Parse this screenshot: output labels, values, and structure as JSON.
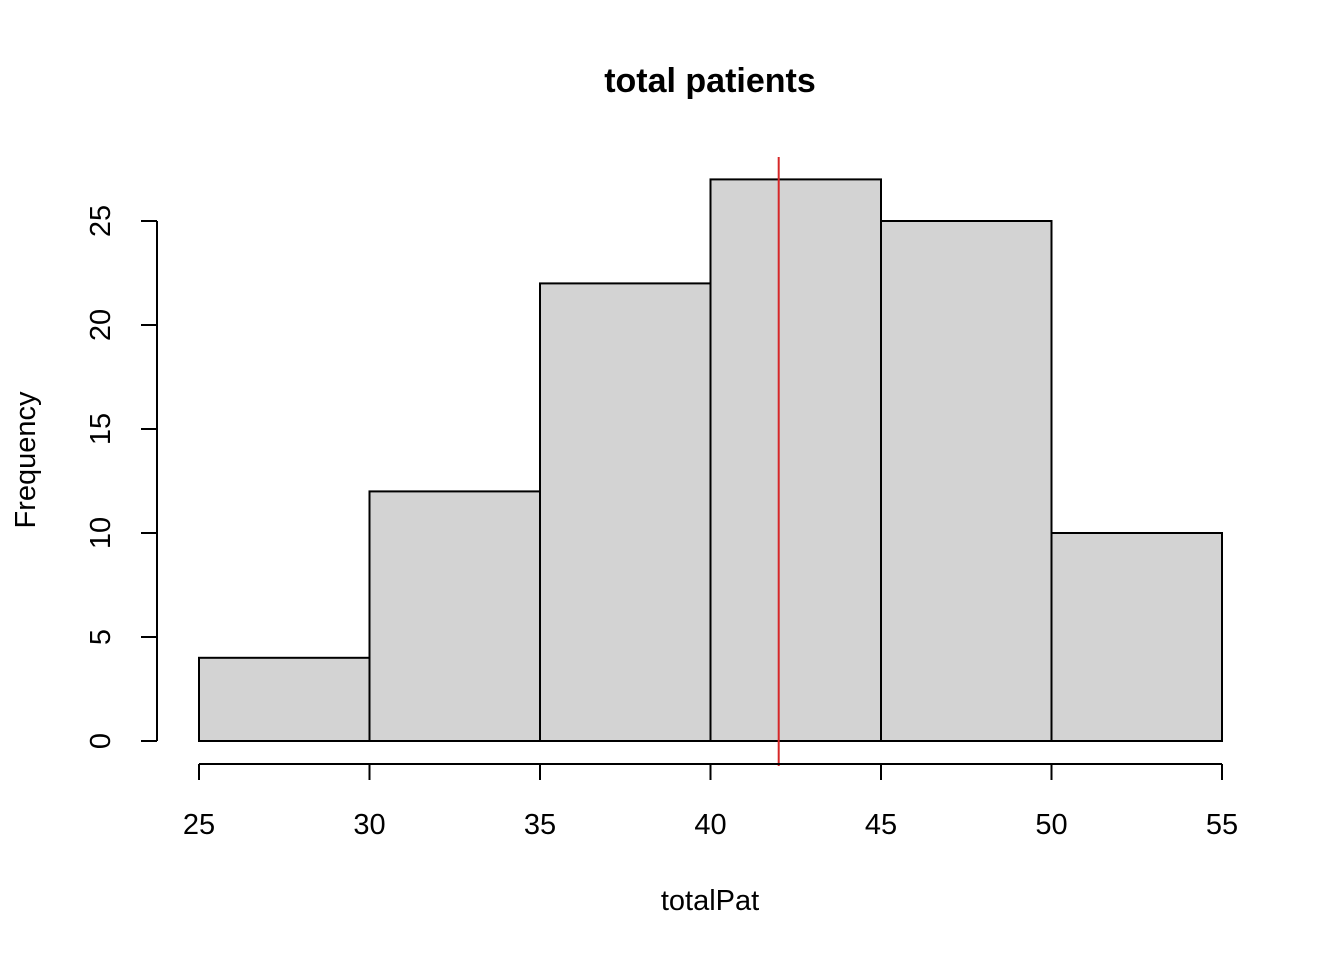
{
  "chart_data": {
    "type": "bar",
    "title": "total patients",
    "xlabel": "totalPat",
    "ylabel": "Frequency",
    "bins": [
      {
        "from": 25,
        "to": 30,
        "count": 4
      },
      {
        "from": 30,
        "to": 35,
        "count": 12
      },
      {
        "from": 35,
        "to": 40,
        "count": 22
      },
      {
        "from": 40,
        "to": 45,
        "count": 27
      },
      {
        "from": 45,
        "to": 50,
        "count": 25
      },
      {
        "from": 50,
        "to": 55,
        "count": 10
      }
    ],
    "xlim": [
      25,
      55
    ],
    "ylim": [
      0,
      27
    ],
    "x_ticks": [
      25,
      30,
      35,
      40,
      45,
      50,
      55
    ],
    "y_ticks": [
      0,
      5,
      10,
      15,
      20,
      25
    ],
    "vline": {
      "x": 42,
      "color": "#d62728"
    },
    "bar_fill": "#d3d3d3",
    "grid": false
  }
}
